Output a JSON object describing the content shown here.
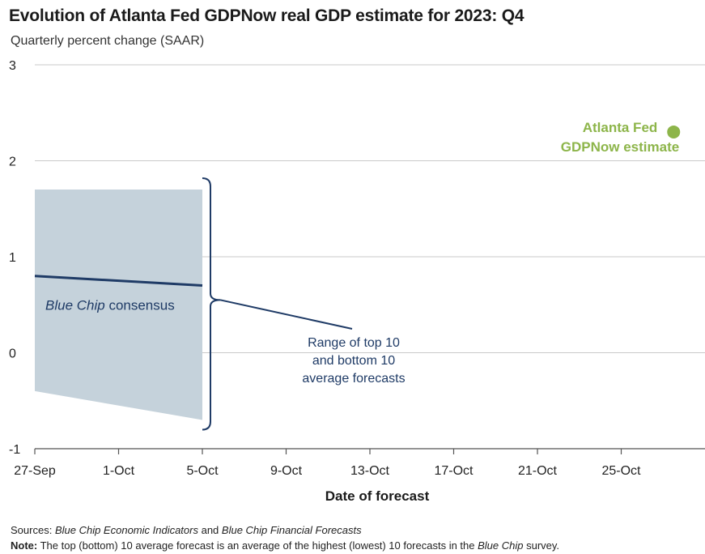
{
  "chart_data": {
    "type": "line",
    "title": "Evolution of Atlanta Fed GDPNow real GDP estimate for 2023: Q4",
    "subtitle": "Quarterly percent change (SAAR)",
    "xlabel": "Date of forecast",
    "ylabel": "",
    "x_ticks": [
      "27-Sep",
      "1-Oct",
      "5-Oct",
      "9-Oct",
      "13-Oct",
      "17-Oct",
      "21-Oct",
      "25-Oct"
    ],
    "x_domain": [
      "2023-09-27",
      "2023-10-29"
    ],
    "ylim": [
      -1,
      3
    ],
    "y_ticks": [
      -1,
      0,
      1,
      2,
      3
    ],
    "grid": true,
    "band": {
      "label_lines": [
        "Range of top 10",
        "and bottom 10",
        "average forecasts"
      ],
      "x": [
        "2023-09-27",
        "2023-10-05"
      ],
      "upper": [
        1.7,
        1.7
      ],
      "lower": [
        -0.4,
        -0.7
      ],
      "color": "#c5d2db"
    },
    "consensus": {
      "label_italic": "Blue Chip",
      "label_rest": " consensus",
      "x": [
        "2023-09-27",
        "2023-10-05"
      ],
      "values": [
        0.8,
        0.7
      ],
      "color": "#1f3b66"
    },
    "gdpnow": {
      "label_lines": [
        "Atlanta Fed",
        "GDPNow estimate"
      ],
      "x": [
        "2023-10-27"
      ],
      "values": [
        2.3
      ],
      "color": "#8db54a"
    }
  },
  "footer": {
    "sources_label": "Sources",
    "sources_src1": "Blue Chip Economic Indicators",
    "sources_and": " and ",
    "sources_src2": "Blue Chip Financial Forecasts",
    "note_label": "Note:",
    "note_text1": " The top (bottom) 10 average forecast is an average of the highest (lowest) 10 forecasts in the ",
    "note_italic": "Blue Chip",
    "note_text2": " survey."
  }
}
